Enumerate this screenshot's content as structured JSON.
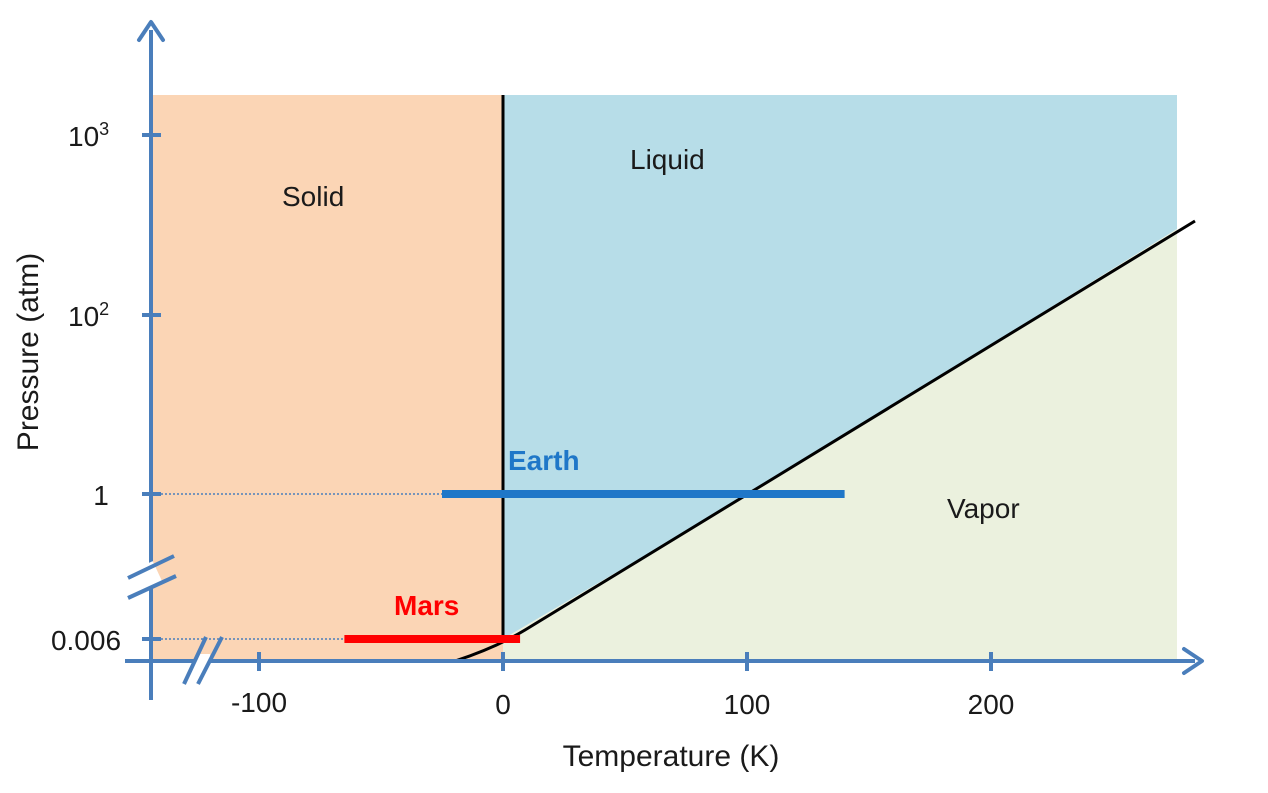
{
  "colors": {
    "axis": "#4a7ebb",
    "solid_fill": "#fbd5b5",
    "liquid_fill": "#b7dde8",
    "vapor_fill": "#ebf1de",
    "boundary": "#000000",
    "earth": "#1f77c8",
    "mars": "#ff0000",
    "guide": "#4a7ebb"
  },
  "regions": {
    "solid": "Solid",
    "liquid": "Liquid",
    "vapor": "Vapor"
  },
  "axes": {
    "x_title": "Temperature  (K)",
    "y_title": "Pressure (atm)",
    "x_ticks": [
      {
        "value": -100,
        "label": "-100"
      },
      {
        "value": 0,
        "label": "0"
      },
      {
        "value": 100,
        "label": "100"
      },
      {
        "value": 200,
        "label": "200"
      }
    ],
    "y_ticks": [
      {
        "value": 1000,
        "base": "10",
        "exp": "3"
      },
      {
        "value": 100,
        "base": "10",
        "exp": "2"
      },
      {
        "value": 1,
        "label": "1"
      },
      {
        "value": 0.006,
        "label": "0.006"
      }
    ],
    "x_break": true,
    "y_break": true
  },
  "planets": {
    "earth": {
      "label": "Earth",
      "pressure": 1,
      "t_min": -25,
      "t_max": 140
    },
    "mars": {
      "label": "Mars",
      "pressure": 0.006,
      "t_min": -65,
      "t_max": 7
    }
  }
}
